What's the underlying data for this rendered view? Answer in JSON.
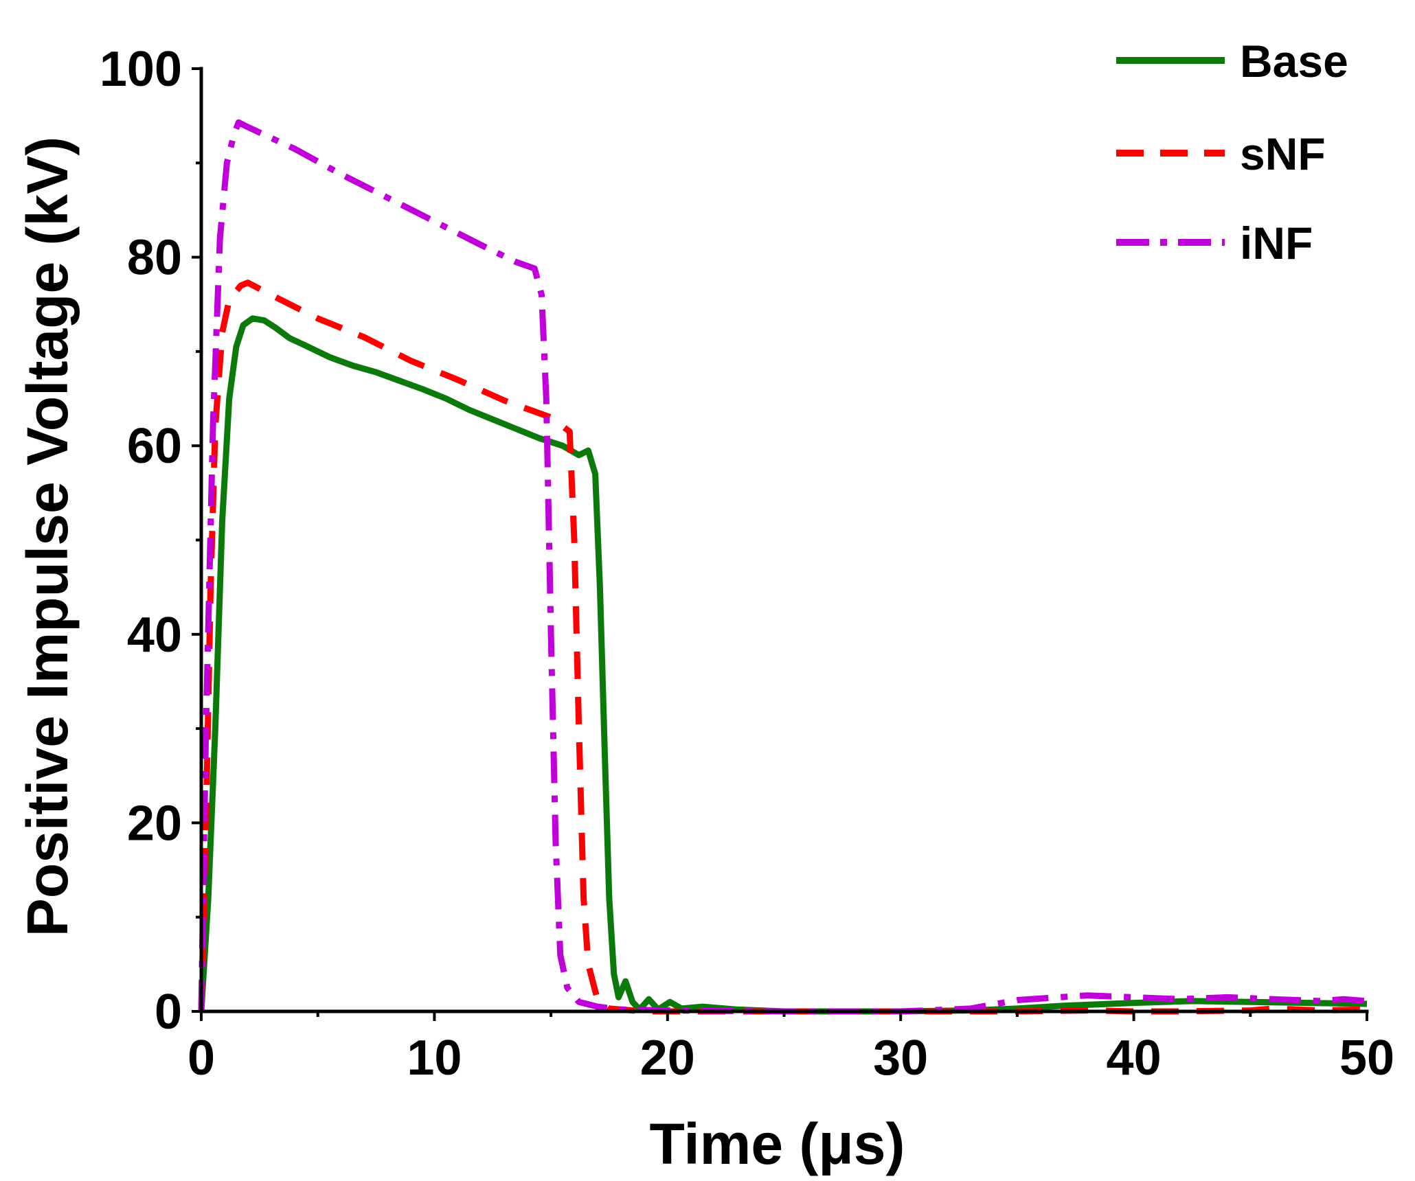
{
  "chart_data": {
    "type": "line",
    "title": "",
    "xlabel": "Time (μs)",
    "ylabel": "Positive Impulse Voltage (kV)",
    "xlim": [
      0,
      50
    ],
    "ylim": [
      0,
      100
    ],
    "xticks": [
      0,
      10,
      20,
      30,
      40,
      50
    ],
    "yticks": [
      0,
      20,
      40,
      60,
      80,
      100
    ],
    "xticks_minor": [
      5,
      15,
      25,
      35,
      45
    ],
    "yticks_minor": [
      10,
      30,
      50,
      70,
      90
    ],
    "grid": false,
    "legend_position": "top-right",
    "series": [
      {
        "name": "Base",
        "color": "#0b7a0b",
        "style": "solid",
        "points": [
          [
            0,
            0
          ],
          [
            0.3,
            12
          ],
          [
            0.6,
            30
          ],
          [
            0.9,
            52
          ],
          [
            1.2,
            65
          ],
          [
            1.5,
            70.5
          ],
          [
            1.8,
            72.8
          ],
          [
            2.2,
            73.5
          ],
          [
            2.7,
            73.3
          ],
          [
            3.2,
            72.5
          ],
          [
            3.8,
            71.4
          ],
          [
            4.5,
            70.6
          ],
          [
            5.5,
            69.4
          ],
          [
            6.5,
            68.5
          ],
          [
            7.5,
            67.8
          ],
          [
            8.5,
            66.9
          ],
          [
            9.5,
            66.0
          ],
          [
            10.5,
            65.0
          ],
          [
            11.5,
            63.8
          ],
          [
            12.5,
            62.8
          ],
          [
            13.5,
            61.8
          ],
          [
            14.5,
            60.8
          ],
          [
            15.5,
            60.0
          ],
          [
            16.2,
            59.0
          ],
          [
            16.6,
            59.5
          ],
          [
            16.9,
            57.0
          ],
          [
            17.1,
            45.0
          ],
          [
            17.3,
            28.0
          ],
          [
            17.5,
            12.0
          ],
          [
            17.7,
            4.0
          ],
          [
            17.9,
            1.5
          ],
          [
            18.2,
            3.2
          ],
          [
            18.5,
            1.0
          ],
          [
            18.8,
            0.2
          ],
          [
            19.2,
            1.3
          ],
          [
            19.6,
            0.2
          ],
          [
            20.1,
            1.0
          ],
          [
            20.6,
            0.3
          ],
          [
            21.5,
            0.5
          ],
          [
            23,
            0.2
          ],
          [
            25,
            0.0
          ],
          [
            28,
            0.0
          ],
          [
            30,
            0.0
          ],
          [
            33,
            0.1
          ],
          [
            35,
            0.3
          ],
          [
            37,
            0.6
          ],
          [
            40,
            0.9
          ],
          [
            42.5,
            1.1
          ],
          [
            45,
            1.0
          ],
          [
            47.5,
            0.9
          ],
          [
            50,
            0.8
          ]
        ]
      },
      {
        "name": "sNF",
        "color": "#ff0000",
        "style": "dashed",
        "points": [
          [
            0,
            0
          ],
          [
            0.2,
            20
          ],
          [
            0.4,
            45
          ],
          [
            0.6,
            62
          ],
          [
            0.9,
            72
          ],
          [
            1.2,
            75.5
          ],
          [
            1.7,
            77.0
          ],
          [
            2.0,
            77.3
          ],
          [
            3.0,
            76.0
          ],
          [
            5.0,
            73.5
          ],
          [
            7.0,
            71.5
          ],
          [
            9.0,
            69.0
          ],
          [
            11.0,
            67.0
          ],
          [
            13.0,
            64.8
          ],
          [
            15.0,
            63.0
          ],
          [
            15.8,
            61.5
          ],
          [
            16.0,
            50.0
          ],
          [
            16.2,
            30.0
          ],
          [
            16.4,
            12.0
          ],
          [
            16.6,
            5.0
          ],
          [
            17.0,
            1.2
          ],
          [
            17.5,
            0.3
          ],
          [
            19,
            0.0
          ],
          [
            25,
            0.0
          ],
          [
            30,
            0.0
          ],
          [
            35,
            0.0
          ],
          [
            38,
            0.1
          ],
          [
            40,
            0.0
          ],
          [
            42,
            0.0
          ],
          [
            45,
            0.1
          ],
          [
            46,
            0.3
          ],
          [
            48,
            0.1
          ],
          [
            50,
            0.2
          ]
        ]
      },
      {
        "name": "iNF",
        "color": "#c000d8",
        "style": "dashdot",
        "points": [
          [
            0,
            0
          ],
          [
            0.2,
            30
          ],
          [
            0.5,
            62
          ],
          [
            0.8,
            82
          ],
          [
            1.1,
            90
          ],
          [
            1.4,
            93
          ],
          [
            1.6,
            94.3
          ],
          [
            2.0,
            93.8
          ],
          [
            4.0,
            91.5
          ],
          [
            6.0,
            88.8
          ],
          [
            8.0,
            86.3
          ],
          [
            10.0,
            83.8
          ],
          [
            12.0,
            81.3
          ],
          [
            13.5,
            79.5
          ],
          [
            14.3,
            78.8
          ],
          [
            14.6,
            76.0
          ],
          [
            14.8,
            65.0
          ],
          [
            15.0,
            40.0
          ],
          [
            15.2,
            18.0
          ],
          [
            15.4,
            6.0
          ],
          [
            15.7,
            2.5
          ],
          [
            16.2,
            1.0
          ],
          [
            17.0,
            0.5
          ],
          [
            18,
            0.2
          ],
          [
            20,
            0.1
          ],
          [
            25,
            0.0
          ],
          [
            30,
            0.0
          ],
          [
            33,
            0.3
          ],
          [
            35,
            1.2
          ],
          [
            38,
            1.7
          ],
          [
            40,
            1.5
          ],
          [
            42,
            1.3
          ],
          [
            44,
            1.5
          ],
          [
            46,
            1.3
          ],
          [
            48,
            1.1
          ],
          [
            49,
            1.3
          ],
          [
            50,
            1.1
          ]
        ]
      }
    ]
  }
}
